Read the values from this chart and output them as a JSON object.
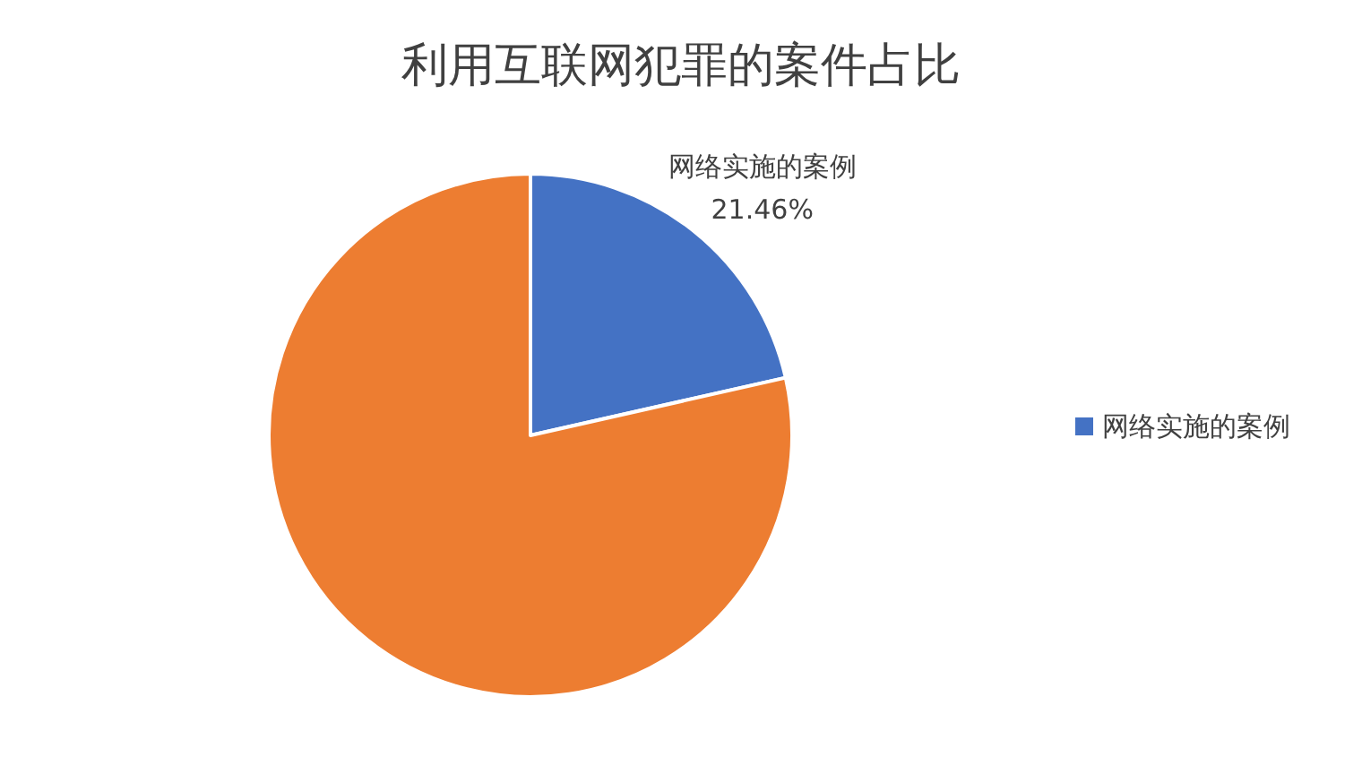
{
  "chart_data": {
    "type": "pie",
    "title": "利用互联网犯罪的案件占比",
    "categories": [
      "网络实施的案例",
      null
    ],
    "values": [
      21.46,
      78.54
    ],
    "colors": [
      "#4472c4",
      "#ed7d31"
    ],
    "value_labels": [
      "21.46%",
      null
    ],
    "legend": "right"
  }
}
